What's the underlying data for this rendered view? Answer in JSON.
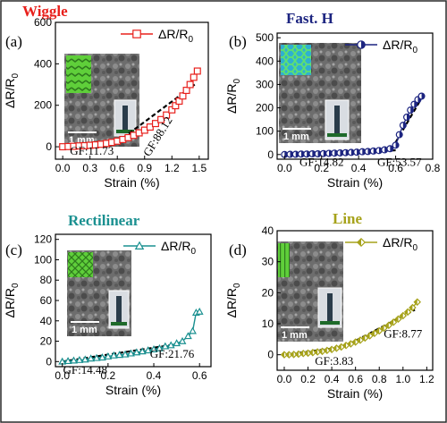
{
  "axis_labels": {
    "x": "Strain (%)",
    "y_main": "ΔR/R",
    "y_sub": "0"
  },
  "colors": {
    "border": "#2a2a2a",
    "wiggle": "#e8201c",
    "fast_h": "#1c2480",
    "rectilinear": "#1a9090",
    "line": "#a6a21a",
    "fit": "#000000",
    "inset_green": "#5fcf3a"
  },
  "scale_bar_label": "1 mm",
  "chart_data": [
    {
      "id": "wiggle",
      "panel_label": "(a)",
      "title": "Wiggle",
      "type": "scatter",
      "color": "#e8201c",
      "marker": "square",
      "legend_main": "ΔR/R",
      "legend_sub": "0",
      "xlabel": "Strain (%)",
      "ylabel": "ΔR/R0",
      "xlim": [
        -0.08,
        1.6
      ],
      "ylim": [
        -60,
        600
      ],
      "xticks": [
        0.0,
        0.3,
        0.6,
        0.9,
        1.2,
        1.5
      ],
      "xtick_labels": [
        "0.0",
        "0.3",
        "0.6",
        "0.9",
        "1.2",
        "1.5"
      ],
      "yticks": [
        0,
        200,
        400,
        600
      ],
      "ytick_labels": [
        "0",
        "200",
        "400",
        "600"
      ],
      "x": [
        0.0,
        0.06,
        0.12,
        0.18,
        0.24,
        0.3,
        0.36,
        0.42,
        0.48,
        0.54,
        0.6,
        0.66,
        0.72,
        0.78,
        0.84,
        0.9,
        0.96,
        1.02,
        1.08,
        1.14,
        1.2,
        1.24,
        1.28,
        1.32,
        1.36,
        1.4,
        1.44,
        1.48
      ],
      "y": [
        0,
        1,
        2,
        4,
        5,
        7,
        9,
        12,
        16,
        21,
        27,
        35,
        44,
        55,
        67,
        80,
        95,
        112,
        131,
        153,
        178,
        198,
        220,
        245,
        272,
        300,
        335,
        365
      ],
      "fits": [
        {
          "x": [
            0.0,
            0.6
          ],
          "y": [
            0,
            22
          ]
        },
        {
          "x": [
            0.6,
            1.45
          ],
          "y": [
            22,
            300
          ]
        }
      ],
      "annotations": [
        {
          "text": "GF:11.73",
          "x": 0.32,
          "y": -38
        },
        {
          "text": "GF:88.12",
          "x": 1.08,
          "y": 40,
          "rotate": -58
        }
      ]
    },
    {
      "id": "fast_h",
      "panel_label": "(b)",
      "title": "Fast. H",
      "type": "scatter",
      "color": "#1c2480",
      "marker": "half-circle",
      "legend_main": "ΔR/R",
      "legend_sub": "0",
      "xlabel": "Strain (%)",
      "ylabel": "ΔR/R0",
      "xlim": [
        -0.04,
        0.8
      ],
      "ylim": [
        -20,
        520
      ],
      "xticks": [
        0.0,
        0.2,
        0.4,
        0.6,
        0.8
      ],
      "xtick_labels": [
        "0.0",
        "0.2",
        "0.4",
        "0.6",
        "0.8"
      ],
      "yticks": [
        0,
        100,
        200,
        300,
        400,
        500
      ],
      "ytick_labels": [
        "0",
        "100",
        "200",
        "300",
        "400",
        "500"
      ],
      "x": [
        0.0,
        0.03,
        0.06,
        0.09,
        0.12,
        0.15,
        0.18,
        0.21,
        0.24,
        0.27,
        0.3,
        0.33,
        0.36,
        0.39,
        0.42,
        0.45,
        0.48,
        0.51,
        0.54,
        0.57,
        0.6,
        0.62,
        0.64,
        0.66,
        0.68,
        0.7,
        0.72,
        0.74
      ],
      "y": [
        0,
        1,
        1,
        2,
        2,
        3,
        3,
        4,
        5,
        6,
        7,
        8,
        9,
        10,
        12,
        13,
        15,
        17,
        20,
        25,
        40,
        85,
        125,
        160,
        190,
        215,
        235,
        250
      ],
      "fits": [
        {
          "x": [
            0.0,
            0.6
          ],
          "y": [
            0,
            18
          ]
        },
        {
          "x": [
            0.58,
            0.75
          ],
          "y": [
            25,
            255
          ]
        }
      ],
      "annotations": [
        {
          "text": "GF:14.82",
          "x": 0.2,
          "y": -48
        },
        {
          "text": "GF:53.57",
          "x": 0.62,
          "y": -48
        }
      ]
    },
    {
      "id": "rectilinear",
      "panel_label": "(c)",
      "title": "Rectilinear",
      "type": "scatter",
      "color": "#1a9090",
      "marker": "triangle",
      "legend_main": "ΔR/R",
      "legend_sub": "0",
      "xlabel": "Strain (%)",
      "ylabel": "ΔR/R0",
      "xlim": [
        -0.03,
        0.65
      ],
      "ylim": [
        -5,
        125
      ],
      "xticks": [
        0.0,
        0.2,
        0.4,
        0.6
      ],
      "xtick_labels": [
        "0.0",
        "0.2",
        "0.4",
        "0.6"
      ],
      "yticks": [
        0,
        20,
        40,
        60,
        80,
        100,
        120
      ],
      "ytick_labels": [
        "0",
        "20",
        "40",
        "60",
        "80",
        "100",
        "120"
      ],
      "x": [
        0.0,
        0.025,
        0.05,
        0.075,
        0.1,
        0.125,
        0.15,
        0.175,
        0.2,
        0.225,
        0.25,
        0.275,
        0.3,
        0.325,
        0.35,
        0.375,
        0.4,
        0.425,
        0.45,
        0.475,
        0.5,
        0.525,
        0.55,
        0.57,
        0.585,
        0.6
      ],
      "y": [
        0,
        0.5,
        1,
        1.5,
        2,
        3,
        3.5,
        4,
        5,
        6,
        6.5,
        7,
        8,
        9,
        10,
        11,
        12,
        13,
        15,
        16,
        18,
        20,
        25,
        30,
        48,
        49
      ],
      "fits": [
        {
          "x": [
            0.0,
            0.5
          ],
          "y": [
            0,
            17
          ]
        },
        {
          "x": [
            0.3,
            0.48
          ],
          "y": [
            7,
            15
          ]
        }
      ],
      "annotations": [
        {
          "text": "GF:14.48",
          "x": 0.1,
          "y": -12
        },
        {
          "text": "GF:21.76",
          "x": 0.48,
          "y": 4
        }
      ]
    },
    {
      "id": "line",
      "panel_label": "(d)",
      "title": "Line",
      "type": "scatter",
      "color": "#a6a21a",
      "marker": "half-diamond",
      "legend_main": "ΔR/R",
      "legend_sub": "0",
      "xlabel": "Strain (%)",
      "ylabel": "ΔR/R0",
      "xlim": [
        -0.06,
        1.25
      ],
      "ylim": [
        -5,
        40
      ],
      "xticks": [
        0.0,
        0.2,
        0.4,
        0.6,
        0.8,
        1.0,
        1.2
      ],
      "xtick_labels": [
        "0.0",
        "0.2",
        "0.4",
        "0.6",
        "0.8",
        "1.0",
        "1.2"
      ],
      "yticks": [
        0,
        10,
        20,
        30,
        40
      ],
      "ytick_labels": [
        "0",
        "10",
        "20",
        "30",
        "40"
      ],
      "x": [
        0.0,
        0.04,
        0.08,
        0.12,
        0.16,
        0.2,
        0.24,
        0.28,
        0.32,
        0.36,
        0.4,
        0.44,
        0.48,
        0.52,
        0.56,
        0.6,
        0.64,
        0.68,
        0.72,
        0.76,
        0.8,
        0.84,
        0.88,
        0.92,
        0.96,
        1.0,
        1.04,
        1.08,
        1.12
      ],
      "y": [
        0,
        0,
        0.1,
        0.2,
        0.4,
        0.5,
        0.7,
        0.9,
        1.1,
        1.4,
        1.7,
        2.1,
        2.5,
        3.0,
        3.5,
        4.1,
        4.7,
        5.4,
        6.1,
        6.9,
        7.7,
        8.6,
        9.5,
        10.5,
        11.5,
        12.6,
        13.8,
        15.2,
        17
      ],
      "fits": [
        {
          "x": [
            0.0,
            0.5
          ],
          "y": [
            0,
            2.5
          ]
        },
        {
          "x": [
            0.55,
            1.1
          ],
          "y": [
            3.5,
            14.5
          ]
        }
      ],
      "annotations": [
        {
          "text": "GF:3.83",
          "x": 0.42,
          "y": -3.3
        },
        {
          "text": "GF:8.77",
          "x": 1.0,
          "y": 5.5
        }
      ]
    }
  ]
}
